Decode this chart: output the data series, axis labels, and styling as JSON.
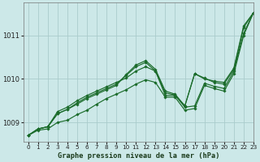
{
  "xlabel": "Graphe pression niveau de la mer (hPa)",
  "bg_color": "#cce8e8",
  "grid_color": "#aacccc",
  "line_color": "#1a6b2a",
  "xlim": [
    -0.5,
    23
  ],
  "ylim": [
    1008.55,
    1011.75
  ],
  "xticks": [
    0,
    1,
    2,
    3,
    4,
    5,
    6,
    7,
    8,
    9,
    10,
    11,
    12,
    13,
    14,
    15,
    16,
    17,
    18,
    19,
    20,
    21,
    22,
    23
  ],
  "yticks": [
    1009,
    1010,
    1011
  ],
  "series": [
    [
      1008.7,
      1008.85,
      1008.9,
      1009.25,
      1009.35,
      1009.5,
      1009.62,
      1009.72,
      1009.82,
      1009.92,
      1010.02,
      1010.18,
      1010.28,
      1010.18,
      1009.68,
      1009.63,
      1009.35,
      1009.38,
      1009.9,
      1009.83,
      1009.78,
      1010.18,
      1011.05,
      1011.52
    ],
    [
      1008.7,
      1008.85,
      1008.9,
      1009.2,
      1009.3,
      1009.45,
      1009.58,
      1009.68,
      1009.78,
      1009.88,
      1010.08,
      1010.28,
      1010.38,
      1010.18,
      1009.62,
      1009.62,
      1009.38,
      1010.12,
      1010.02,
      1009.92,
      1009.88,
      1010.22,
      1011.18,
      1011.52
    ],
    [
      1008.7,
      1008.85,
      1008.9,
      1009.2,
      1009.3,
      1009.42,
      1009.55,
      1009.65,
      1009.75,
      1009.85,
      1010.1,
      1010.32,
      1010.42,
      1010.22,
      1009.72,
      1009.65,
      1009.38,
      1010.12,
      1010.0,
      1009.95,
      1009.92,
      1010.25,
      1011.22,
      1011.52
    ],
    [
      1008.7,
      1008.82,
      1008.85,
      1009.0,
      1009.05,
      1009.18,
      1009.28,
      1009.42,
      1009.55,
      1009.65,
      1009.75,
      1009.88,
      1009.98,
      1009.92,
      1009.58,
      1009.58,
      1009.28,
      1009.32,
      1009.85,
      1009.78,
      1009.72,
      1010.12,
      1011.0,
      1011.52
    ]
  ]
}
